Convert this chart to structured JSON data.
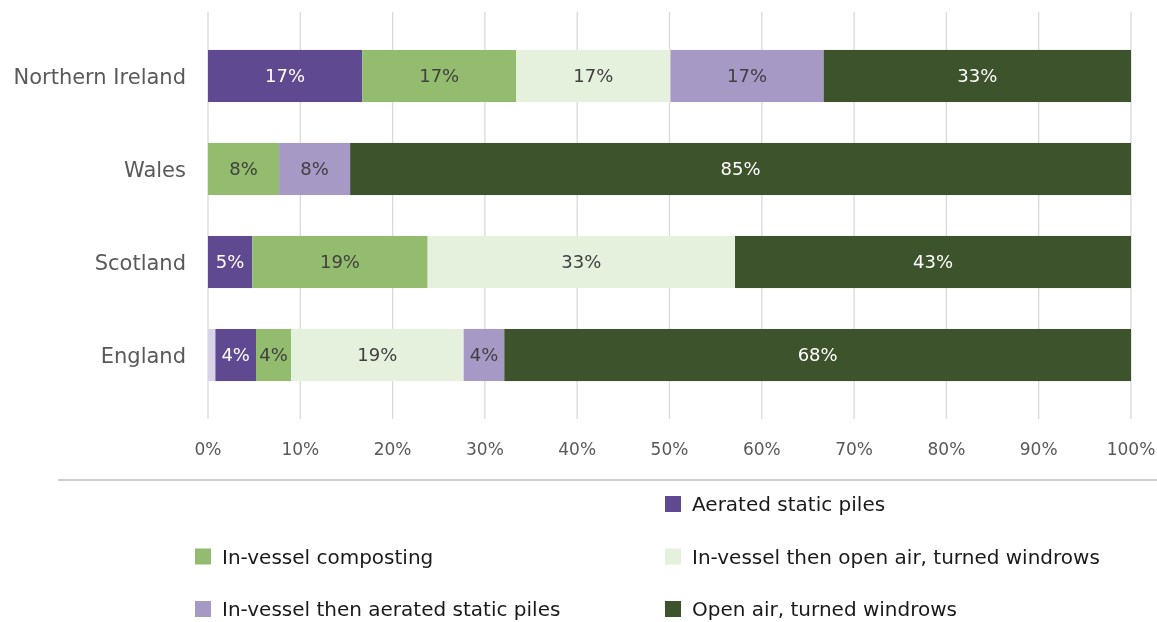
{
  "chart_data": {
    "type": "bar",
    "orientation": "horizontal",
    "stacked": true,
    "categories": [
      "Northern Ireland",
      "Wales",
      "Scotland",
      "England"
    ],
    "series": [
      {
        "color": "#d9d3e8",
        "values": [
          null,
          null,
          null,
          0.8
        ]
      },
      {
        "name": "Aerated static piles",
        "color": "#5f4991",
        "values": [
          16.7,
          null,
          4.8,
          4.4
        ],
        "value_labels": [
          "17%",
          null,
          "5%",
          "4%"
        ]
      },
      {
        "name": "In-vessel composting",
        "color": "#93bc6e",
        "values": [
          16.7,
          7.7,
          19.0,
          3.8
        ],
        "value_labels": [
          "17%",
          "8%",
          "19%",
          "4%"
        ]
      },
      {
        "name": "In-vessel then open air, turned windrows",
        "color": "#e5f0dd",
        "values": [
          16.7,
          null,
          33.3,
          18.7
        ],
        "value_labels": [
          "17%",
          null,
          "33%",
          "19%"
        ]
      },
      {
        "name": "In-vessel then aerated static piles",
        "color": "#a799c6",
        "values": [
          16.6,
          7.7,
          null,
          4.4
        ],
        "value_labels": [
          "17%",
          "8%",
          null,
          "4%"
        ]
      },
      {
        "name": "Open air, turned windrows",
        "color": "#3c532b",
        "values": [
          33.3,
          84.6,
          42.9,
          67.9
        ],
        "value_labels": [
          "33%",
          "85%",
          "43%",
          "68%"
        ]
      }
    ],
    "xlim": [
      0,
      100
    ],
    "xticks": [
      {
        "value": 0,
        "label": "0%"
      },
      {
        "value": 10,
        "label": "10%"
      },
      {
        "value": 20,
        "label": "20%"
      },
      {
        "value": 30,
        "label": "30%"
      },
      {
        "value": 40,
        "label": "40%"
      },
      {
        "value": 50,
        "label": "50%"
      },
      {
        "value": 60,
        "label": "60%"
      },
      {
        "value": 70,
        "label": "70%"
      },
      {
        "value": 80,
        "label": "80%"
      },
      {
        "value": 90,
        "label": "90%"
      },
      {
        "value": 100,
        "label": "100%"
      }
    ],
    "grid": "x",
    "legend": "bottom"
  }
}
